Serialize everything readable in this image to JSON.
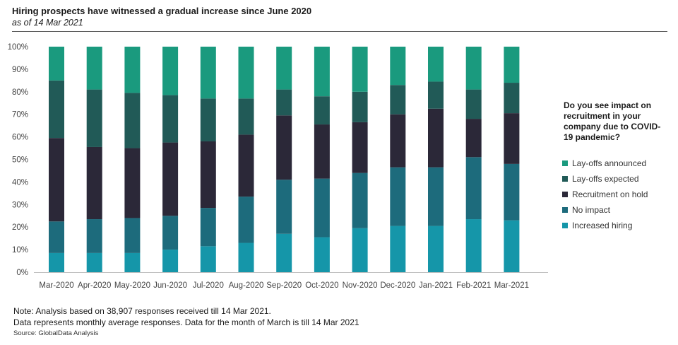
{
  "header": {
    "title": "Hiring prospects have witnessed a gradual increase since June 2020",
    "subtitle": "as of 14 Mar 2021"
  },
  "legend": {
    "title": "Do you see impact on recruitment in your company due to COVID-19 pandemic?"
  },
  "footer": {
    "note_line1": "Note: Analysis based on 38,907 responses received till 14 Mar 2021.",
    "note_line2": "Data represents monthly average responses. Data for the month of March is till 14 Mar 2021",
    "source": "Source: GlobalData Analysis"
  },
  "chart_data": {
    "type": "bar",
    "stacked": true,
    "orientation": "vertical",
    "title": "Hiring prospects have witnessed a gradual increase since June 2020",
    "subtitle": "as of 14 Mar 2021",
    "ylim": [
      0,
      100
    ],
    "yticks": [
      "0%",
      "10%",
      "20%",
      "30%",
      "40%",
      "50%",
      "60%",
      "70%",
      "80%",
      "90%",
      "100%"
    ],
    "grid": false,
    "legend_position": "right",
    "categories": [
      "Mar-2020",
      "Apr-2020",
      "May-2020",
      "Jun-2020",
      "Jul-2020",
      "Aug-2020",
      "Sep-2020",
      "Oct-2020",
      "Nov-2020",
      "Dec-2020",
      "Jan-2021",
      "Feb-2021",
      "Mar-2021"
    ],
    "series": [
      {
        "name": "Increased hiring",
        "color": "#1596a9",
        "values": [
          8.5,
          8.5,
          8.5,
          10,
          11.5,
          13,
          17,
          15.5,
          19.5,
          20.5,
          20.5,
          23.5,
          23
        ]
      },
      {
        "name": "No impact",
        "color": "#1d6b7c",
        "values": [
          14,
          15,
          15.5,
          15,
          17,
          20.5,
          24,
          26,
          24.5,
          26,
          26,
          27.5,
          25
        ]
      },
      {
        "name": "Recruitment on hold",
        "color": "#2b2838",
        "values": [
          37,
          32,
          31,
          32.5,
          29.5,
          27.5,
          28.5,
          24,
          22.5,
          23.5,
          26,
          17,
          22.5
        ]
      },
      {
        "name": "Lay-offs expected",
        "color": "#215a57",
        "values": [
          25.5,
          25.5,
          24.5,
          21,
          19,
          16,
          11.5,
          12.5,
          13.5,
          13,
          12,
          13,
          13.5
        ]
      },
      {
        "name": "Lay-offs announced",
        "color": "#1a9a7e",
        "values": [
          15,
          19,
          20.5,
          21.5,
          23,
          23,
          19,
          22,
          20,
          17,
          15.5,
          19,
          16
        ]
      }
    ],
    "legend_order": [
      "Lay-offs announced",
      "Lay-offs expected",
      "Recruitment on hold",
      "No impact",
      "Increased hiring"
    ]
  }
}
